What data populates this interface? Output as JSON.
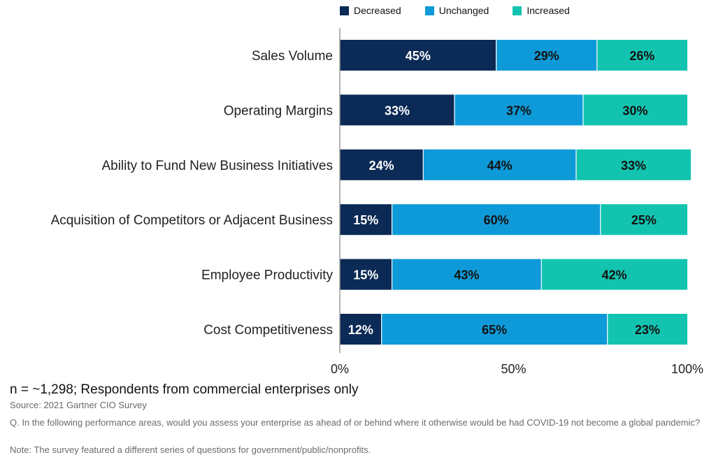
{
  "chart_data": {
    "type": "bar",
    "orientation": "horizontal-stacked",
    "categories": [
      "Sales Volume",
      "Operating Margins",
      "Ability to Fund New Business Initiatives",
      "Acquisition of Competitors or Adjacent Business",
      "Employee Productivity",
      "Cost Competitiveness"
    ],
    "series": [
      {
        "name": "Decreased",
        "color": "#0b2a55",
        "label_color": "#ffffff",
        "values": [
          45,
          33,
          24,
          15,
          15,
          12
        ]
      },
      {
        "name": "Unchanged",
        "color": "#0e9ad8",
        "label_color": "#111111",
        "values": [
          29,
          37,
          44,
          60,
          43,
          65
        ]
      },
      {
        "name": "Increased",
        "color": "#12c4b0",
        "label_color": "#111111",
        "values": [
          26,
          30,
          33,
          25,
          42,
          23
        ]
      }
    ],
    "value_suffix": "%",
    "xlim": [
      0,
      100
    ],
    "xticks": [
      "0%",
      "50%",
      "100%"
    ],
    "xtick_values": [
      0,
      50,
      100
    ],
    "legend_position": "top",
    "grid": false
  },
  "footer": {
    "n_note": "n = ~1,298; Respondents from commercial enterprises only",
    "source": "Source: 2021 Gartner CIO Survey",
    "question": "Q. In the following performance areas, would you assess your enterprise as ahead of or behind where it otherwise would be had COVID-19 not become a global pandemic?",
    "note": "Note: The survey featured a different series of questions for government/public/nonprofits."
  }
}
